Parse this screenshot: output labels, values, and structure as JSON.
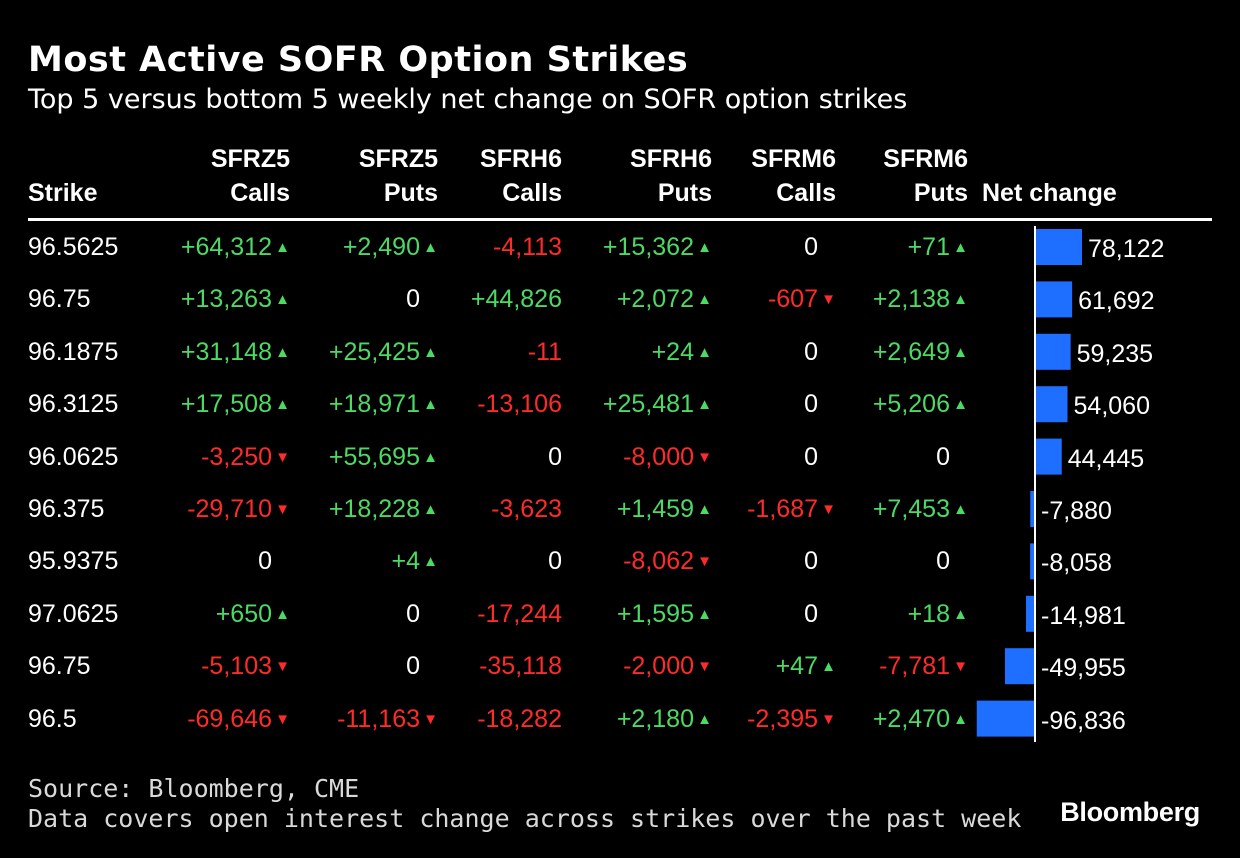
{
  "title": "Most Active SOFR Option Strikes",
  "subtitle": "Top 5 versus bottom 5 weekly net change on SOFR option strikes",
  "columns": [
    {
      "line1": "",
      "line2": "Strike"
    },
    {
      "line1": "SFRZ5",
      "line2": "Calls"
    },
    {
      "line1": "SFRZ5",
      "line2": "Puts"
    },
    {
      "line1": "SFRH6",
      "line2": "Calls"
    },
    {
      "line1": "SFRH6",
      "line2": "Puts"
    },
    {
      "line1": "SFRM6",
      "line2": "Calls"
    },
    {
      "line1": "SFRM6",
      "line2": "Puts"
    },
    {
      "line1": "",
      "line2": "Net change"
    }
  ],
  "colors": {
    "positive": "#4cd964",
    "negative": "#ff2a2a",
    "bar": "#1e6fff",
    "axis": "#ffffff"
  },
  "chart_data": {
    "type": "table",
    "title": "Most Active SOFR Option Strikes",
    "subtitle": "Top 5 versus bottom 5 weekly net change on SOFR option strikes",
    "columns": [
      "Strike",
      "SFRZ5 Calls",
      "SFRZ5 Puts",
      "SFRH6 Calls",
      "SFRH6 Puts",
      "SFRM6 Calls",
      "SFRM6 Puts",
      "Net change"
    ],
    "rows": [
      {
        "strike": "96.5625",
        "values": [
          "+64,312",
          "+2,490",
          "-4,113",
          "+15,362",
          "0",
          "+71"
        ],
        "net_label": "78,122",
        "net": 78122
      },
      {
        "strike": "96.75",
        "values": [
          "+13,263",
          "0",
          "+44,826",
          "+2,072",
          "-607",
          "+2,138"
        ],
        "net_label": "61,692",
        "net": 61692
      },
      {
        "strike": "96.1875",
        "values": [
          "+31,148",
          "+25,425",
          "-11",
          "+24",
          "0",
          "+2,649"
        ],
        "net_label": "59,235",
        "net": 59235
      },
      {
        "strike": "96.3125",
        "values": [
          "+17,508",
          "+18,971",
          "-13,106",
          "+25,481",
          "0",
          "+5,206"
        ],
        "net_label": "54,060",
        "net": 54060
      },
      {
        "strike": "96.0625",
        "values": [
          "-3,250",
          "+55,695",
          "0",
          "-8,000",
          "0",
          "0"
        ],
        "net_label": "44,445",
        "net": 44445
      },
      {
        "strike": "96.375",
        "values": [
          "-29,710",
          "+18,228",
          "-3,623",
          "+1,459",
          "-1,687",
          "+7,453"
        ],
        "net_label": "-7,880",
        "net": -7880
      },
      {
        "strike": "95.9375",
        "values": [
          "0",
          "+4",
          "0",
          "-8,062",
          "0",
          "0"
        ],
        "net_label": "-8,058",
        "net": -8058
      },
      {
        "strike": "97.0625",
        "values": [
          "+650",
          "0",
          "-17,244",
          "+1,595",
          "0",
          "+18"
        ],
        "net_label": "-14,981",
        "net": -14981
      },
      {
        "strike": "96.75",
        "values": [
          "-5,103",
          "0",
          "-35,118",
          "-2,000",
          "+47",
          "-7,781"
        ],
        "net_label": "-49,955",
        "net": -49955
      },
      {
        "strike": "96.5",
        "values": [
          "-69,646",
          "-11,163",
          "-18,282",
          "+2,180",
          "-2,395",
          "+2,470"
        ],
        "net_label": "-96,836",
        "net": -96836
      }
    ],
    "arrow_columns": [
      0,
      1,
      3,
      4,
      5
    ],
    "bar_range": [
      -96836,
      78122
    ]
  },
  "source": "Source: Bloomberg, CME",
  "note": "Data covers open interest change across strikes over the past week",
  "logo": "Bloomberg"
}
